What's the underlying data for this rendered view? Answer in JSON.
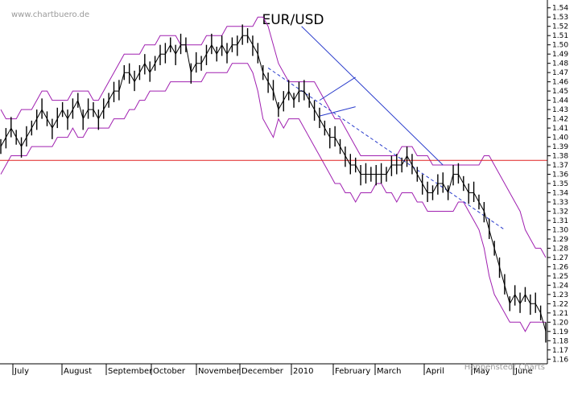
{
  "watermark_top": "www.chartbuero.de",
  "watermark_bottom": "Hoppenstedt Charts",
  "chart_data": {
    "type": "line",
    "title": "EUR/USD",
    "ylim": [
      1.155,
      1.545
    ],
    "y_ticks": [
      1.54,
      1.53,
      1.52,
      1.51,
      1.5,
      1.49,
      1.48,
      1.47,
      1.46,
      1.45,
      1.44,
      1.43,
      1.42,
      1.41,
      1.4,
      1.39,
      1.38,
      1.37,
      1.36,
      1.35,
      1.34,
      1.33,
      1.32,
      1.31,
      1.3,
      1.29,
      1.28,
      1.27,
      1.26,
      1.25,
      1.24,
      1.23,
      1.22,
      1.21,
      1.2,
      1.19,
      1.18,
      1.17,
      1.16
    ],
    "x_labels": [
      "July",
      "August",
      "September",
      "October",
      "November",
      "December",
      "2010",
      "February",
      "March",
      "April",
      "May",
      "June"
    ],
    "grid": false,
    "price": [
      1.39,
      1.4,
      1.41,
      1.4,
      1.39,
      1.4,
      1.41,
      1.42,
      1.43,
      1.42,
      1.41,
      1.42,
      1.43,
      1.42,
      1.43,
      1.44,
      1.42,
      1.43,
      1.43,
      1.42,
      1.43,
      1.44,
      1.45,
      1.45,
      1.47,
      1.47,
      1.46,
      1.47,
      1.48,
      1.47,
      1.48,
      1.49,
      1.49,
      1.5,
      1.49,
      1.5,
      1.5,
      1.47,
      1.48,
      1.48,
      1.49,
      1.5,
      1.49,
      1.5,
      1.49,
      1.5,
      1.5,
      1.51,
      1.51,
      1.5,
      1.49,
      1.47,
      1.46,
      1.45,
      1.43,
      1.44,
      1.45,
      1.44,
      1.45,
      1.45,
      1.44,
      1.43,
      1.42,
      1.41,
      1.4,
      1.4,
      1.39,
      1.38,
      1.37,
      1.37,
      1.36,
      1.36,
      1.36,
      1.36,
      1.36,
      1.36,
      1.37,
      1.37,
      1.37,
      1.38,
      1.37,
      1.36,
      1.35,
      1.34,
      1.34,
      1.35,
      1.35,
      1.34,
      1.36,
      1.36,
      1.35,
      1.34,
      1.34,
      1.33,
      1.32,
      1.3,
      1.28,
      1.26,
      1.24,
      1.22,
      1.23,
      1.22,
      1.23,
      1.22,
      1.22,
      1.21,
      1.19
    ],
    "upper_band": [
      1.43,
      1.42,
      1.42,
      1.42,
      1.43,
      1.43,
      1.43,
      1.44,
      1.45,
      1.45,
      1.44,
      1.44,
      1.44,
      1.44,
      1.45,
      1.45,
      1.45,
      1.45,
      1.44,
      1.44,
      1.45,
      1.46,
      1.47,
      1.48,
      1.49,
      1.49,
      1.49,
      1.49,
      1.5,
      1.5,
      1.5,
      1.51,
      1.51,
      1.51,
      1.51,
      1.5,
      1.5,
      1.5,
      1.5,
      1.5,
      1.51,
      1.51,
      1.51,
      1.51,
      1.52,
      1.52,
      1.52,
      1.52,
      1.52,
      1.52,
      1.53,
      1.53,
      1.52,
      1.5,
      1.48,
      1.47,
      1.46,
      1.46,
      1.46,
      1.46,
      1.46,
      1.46,
      1.45,
      1.44,
      1.43,
      1.42,
      1.42,
      1.41,
      1.4,
      1.39,
      1.38,
      1.38,
      1.38,
      1.38,
      1.38,
      1.38,
      1.38,
      1.38,
      1.39,
      1.39,
      1.39,
      1.38,
      1.38,
      1.38,
      1.37,
      1.37,
      1.37,
      1.37,
      1.37,
      1.37,
      1.37,
      1.37,
      1.37,
      1.37,
      1.38,
      1.38,
      1.37,
      1.36,
      1.35,
      1.34,
      1.33,
      1.32,
      1.3,
      1.29,
      1.28,
      1.28,
      1.27
    ],
    "lower_band": [
      1.36,
      1.37,
      1.38,
      1.38,
      1.38,
      1.38,
      1.39,
      1.39,
      1.39,
      1.39,
      1.39,
      1.4,
      1.4,
      1.4,
      1.41,
      1.4,
      1.4,
      1.41,
      1.41,
      1.41,
      1.41,
      1.41,
      1.42,
      1.42,
      1.42,
      1.43,
      1.43,
      1.44,
      1.44,
      1.45,
      1.45,
      1.45,
      1.45,
      1.46,
      1.46,
      1.46,
      1.46,
      1.46,
      1.46,
      1.46,
      1.47,
      1.47,
      1.47,
      1.47,
      1.47,
      1.48,
      1.48,
      1.48,
      1.48,
      1.47,
      1.45,
      1.42,
      1.41,
      1.4,
      1.42,
      1.41,
      1.42,
      1.42,
      1.42,
      1.41,
      1.4,
      1.39,
      1.38,
      1.37,
      1.36,
      1.35,
      1.35,
      1.34,
      1.34,
      1.33,
      1.34,
      1.34,
      1.34,
      1.35,
      1.35,
      1.34,
      1.34,
      1.33,
      1.34,
      1.34,
      1.34,
      1.33,
      1.33,
      1.32,
      1.32,
      1.32,
      1.32,
      1.32,
      1.32,
      1.33,
      1.33,
      1.32,
      1.31,
      1.3,
      1.28,
      1.25,
      1.23,
      1.22,
      1.21,
      1.2,
      1.2,
      1.2,
      1.19,
      1.2,
      1.2,
      1.2,
      1.2
    ],
    "horizontal_line": 1.375,
    "trendlines": [
      {
        "style": "solid",
        "from": [
          58.5,
          1.52
        ],
        "to": [
          86,
          1.37
        ]
      },
      {
        "style": "solid",
        "from": [
          62,
          1.44
        ],
        "to": [
          69,
          1.465
        ]
      },
      {
        "style": "solid",
        "from": [
          62,
          1.423
        ],
        "to": [
          69,
          1.433
        ]
      },
      {
        "style": "dashed",
        "from": [
          52,
          1.475
        ],
        "to": [
          98,
          1.3
        ]
      }
    ]
  }
}
